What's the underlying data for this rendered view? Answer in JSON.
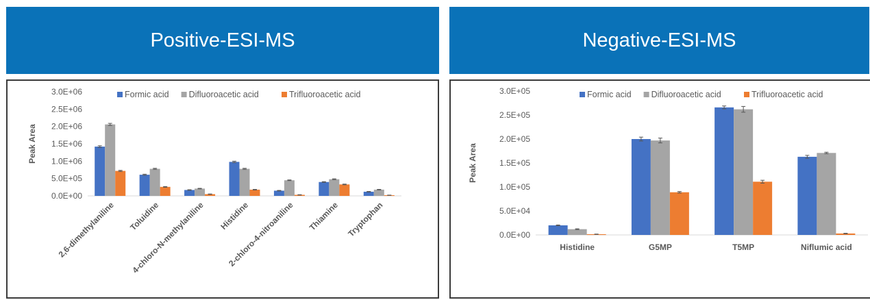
{
  "left": {
    "header": "Positive-ESI-MS"
  },
  "right": {
    "header": "Negative-ESI-MS"
  },
  "colors": {
    "header_bg": "#0A72B8",
    "formic": "#4472C4",
    "difluoro": "#A5A5A5",
    "trifluoro": "#ED7D31"
  },
  "chart_data": [
    {
      "type": "bar",
      "title": "",
      "xlabel": "",
      "ylabel": "Peak Area",
      "ylim": [
        0,
        3000000
      ],
      "yticks": [
        0,
        500000,
        1000000,
        1500000,
        2000000,
        2500000,
        3000000
      ],
      "ytick_labels": [
        "0.0E+00",
        "5.0E+05",
        "1.0E+06",
        "1.5E+06",
        "2.0E+06",
        "2.5E+06",
        "3.0E+06"
      ],
      "legend_position": "top",
      "error_bars": true,
      "categories": [
        "2,6-dimethylaniline",
        "Toluidine",
        "4-chloro-N-methylaniline",
        "Histidine",
        "2-chloro-4-nitroaniline",
        "Thiamine",
        "Tryptophan"
      ],
      "series": [
        {
          "name": "Formic acid",
          "values": [
            1420000,
            610000,
            170000,
            980000,
            150000,
            400000,
            120000
          ],
          "errors": [
            25000,
            15000,
            8000,
            20000,
            8000,
            10000,
            8000
          ]
        },
        {
          "name": "Difluoroacetic acid",
          "values": [
            2060000,
            780000,
            210000,
            780000,
            450000,
            480000,
            180000
          ],
          "errors": [
            30000,
            15000,
            8000,
            15000,
            10000,
            12000,
            8000
          ]
        },
        {
          "name": "Trifluoroacetic acid",
          "values": [
            720000,
            260000,
            50000,
            180000,
            30000,
            330000,
            20000
          ],
          "errors": [
            15000,
            10000,
            5000,
            8000,
            4000,
            10000,
            3000
          ]
        }
      ]
    },
    {
      "type": "bar",
      "title": "",
      "xlabel": "",
      "ylabel": "Peak Area",
      "ylim": [
        0,
        300000
      ],
      "yticks": [
        0,
        50000,
        100000,
        150000,
        200000,
        250000,
        300000
      ],
      "ytick_labels": [
        "0.0E+00",
        "5.0E+04",
        "1.0E+05",
        "1.5E+05",
        "2.0E+05",
        "2.5E+05",
        "3.0E+05"
      ],
      "legend_position": "top",
      "error_bars": true,
      "categories": [
        "Histidine",
        "G5MP",
        "T5MP",
        "Niflumic acid"
      ],
      "series": [
        {
          "name": "Formic acid",
          "values": [
            20000,
            200000,
            266000,
            163000
          ],
          "errors": [
            800,
            4000,
            3000,
            3000
          ]
        },
        {
          "name": "Difluoroacetic acid",
          "values": [
            12000,
            197000,
            262000,
            171000
          ],
          "errors": [
            800,
            5000,
            6000,
            1500
          ]
        },
        {
          "name": "Trifluoroacetic acid",
          "values": [
            1500,
            89000,
            111000,
            3000
          ],
          "errors": [
            300,
            1500,
            3000,
            500
          ]
        }
      ]
    }
  ]
}
